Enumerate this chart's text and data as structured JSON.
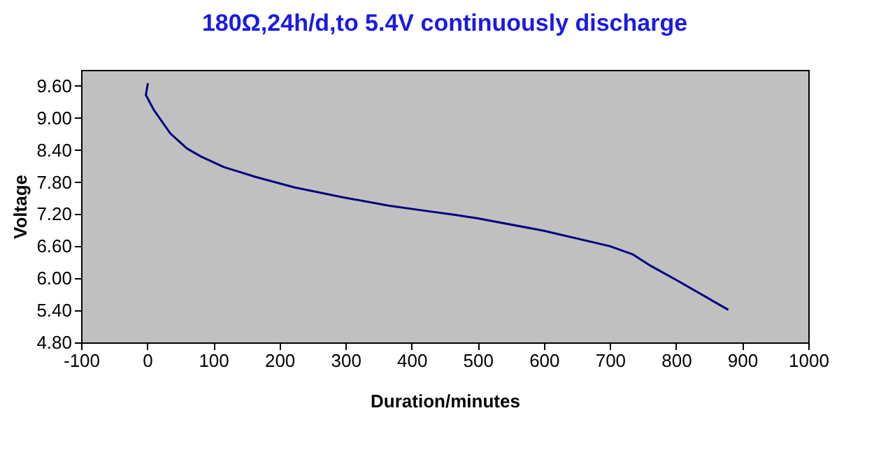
{
  "chart_data": {
    "type": "line",
    "title": "180Ω,24h/d,to 5.4V continuously discharge",
    "xlabel": "Duration/minutes",
    "ylabel": "Voltage",
    "xlim": [
      -100,
      1000
    ],
    "xticks": [
      -100,
      0,
      100,
      200,
      300,
      400,
      500,
      600,
      700,
      800,
      900,
      1000
    ],
    "ylim": [
      4.8,
      9.9
    ],
    "yticks": [
      {
        "value": 4.8,
        "label": "4.80"
      },
      {
        "value": 5.4,
        "label": "5.40"
      },
      {
        "value": 6.0,
        "label": "6.00"
      },
      {
        "value": 6.6,
        "label": "6.60"
      },
      {
        "value": 7.2,
        "label": "7.20"
      },
      {
        "value": 7.8,
        "label": "7.80"
      },
      {
        "value": 8.4,
        "label": "8.40"
      },
      {
        "value": 9.0,
        "label": "9.00"
      },
      {
        "value": 9.6,
        "label": "9.60"
      }
    ],
    "grid": false,
    "marker": "none",
    "line_style": "solid",
    "series": [
      {
        "color": "#000080",
        "x": [
          1,
          -2,
          10,
          35,
          60,
          81,
          116,
          166,
          223,
          294,
          365,
          422,
          464,
          500,
          600,
          700,
          734,
          762,
          800,
          879
        ],
        "values": [
          9.65,
          9.43,
          9.15,
          8.71,
          8.43,
          8.28,
          8.08,
          7.89,
          7.7,
          7.52,
          7.36,
          7.26,
          7.19,
          7.12,
          6.89,
          6.6,
          6.45,
          6.23,
          5.97,
          5.41
        ]
      }
    ]
  }
}
